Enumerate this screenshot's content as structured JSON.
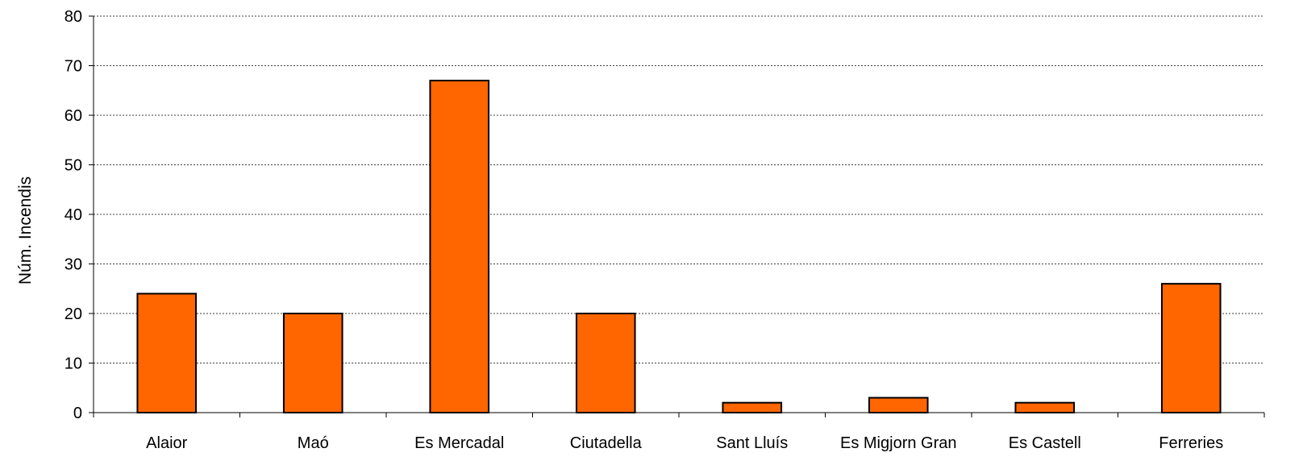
{
  "chart_data": {
    "type": "bar",
    "title": "",
    "xlabel": "",
    "ylabel": "Núm. Incendis",
    "categories": [
      "Alaior",
      "Maó",
      "Es Mercadal",
      "Ciutadella",
      "Sant Lluís",
      "Es Migjorn Gran",
      "Es Castell",
      "Ferreries"
    ],
    "values": [
      24,
      20,
      67,
      20,
      2,
      3,
      2,
      26
    ],
    "ylim": [
      0,
      80
    ],
    "yticks": [
      "0",
      "10",
      "20",
      "30",
      "40",
      "50",
      "60",
      "70",
      "80"
    ],
    "grid": "horizontal dotted",
    "legend": "none",
    "bar_color": "#FF6600",
    "bar_outline": "#000000"
  }
}
